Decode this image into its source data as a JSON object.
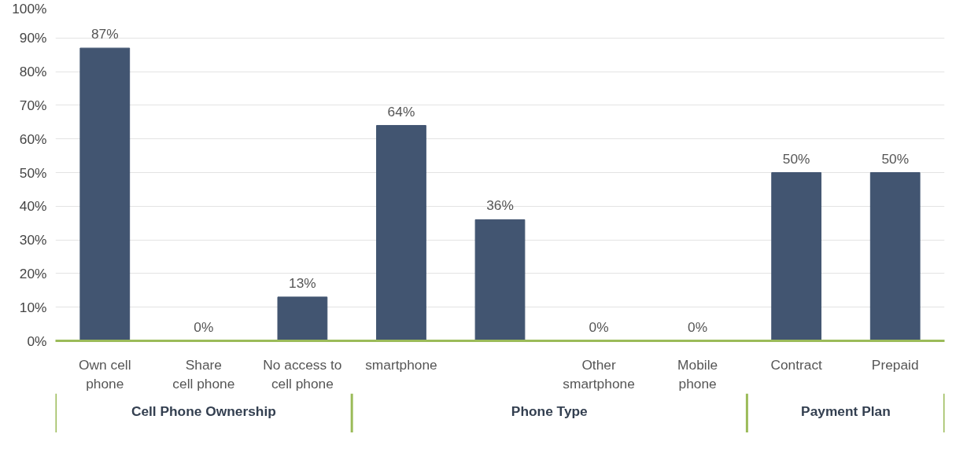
{
  "chart_data": {
    "type": "bar",
    "categories": [
      "Own cell phone",
      "Share cell phone",
      "No access to cell phone",
      "smartphone",
      null,
      "Other smartphone",
      "Mobile phone",
      "Contract",
      "Prepaid"
    ],
    "values": [
      87,
      0,
      13,
      64,
      36,
      0,
      0,
      50,
      50
    ],
    "color": "#425571",
    "data_labels": true,
    "value_labels": [
      "87%",
      "0%",
      "13%",
      "64%",
      "36%",
      "0%",
      "0%",
      "50%",
      "50%"
    ],
    "ylim": [
      0,
      100
    ],
    "yticks": [
      {
        "value": 0,
        "label": "0%"
      },
      {
        "value": 10,
        "label": "10%"
      },
      {
        "value": 20,
        "label": "20%"
      },
      {
        "value": 30,
        "label": "30%"
      },
      {
        "value": 40,
        "label": "40%"
      },
      {
        "value": 50,
        "label": "50%"
      },
      {
        "value": 60,
        "label": "60%"
      },
      {
        "value": 70,
        "label": "70%"
      },
      {
        "value": 80,
        "label": "80%"
      },
      {
        "value": 90,
        "label": "90%"
      },
      {
        "value": 100,
        "label": "100%"
      }
    ],
    "grid": "y",
    "annotations": [
      "Cell Phone Ownership",
      "Phone Type",
      "Payment Plan"
    ]
  }
}
